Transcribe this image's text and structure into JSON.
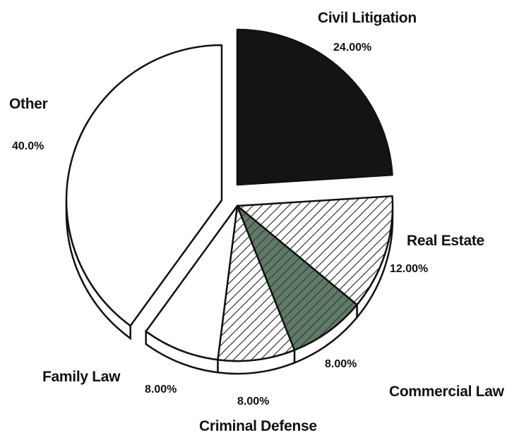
{
  "chart_data": {
    "type": "pie",
    "title": "",
    "style": "3d-exploded",
    "colors": {
      "outline": "#111111",
      "dark": "#141414",
      "hatch": "#222222",
      "green": "#5f7a66",
      "white": "#ffffff"
    },
    "slices": [
      {
        "key": "civil",
        "label": "Civil Litigation",
        "value": 24,
        "value_label": "24.00%",
        "fill": "dark"
      },
      {
        "key": "realestate",
        "label": "Real Estate",
        "value": 12,
        "value_label": "12.00%",
        "fill": "hatch"
      },
      {
        "key": "commercial",
        "label": "Commercial Law",
        "value": 8,
        "value_label": "8.00%",
        "fill": "green-hatch"
      },
      {
        "key": "criminal",
        "label": "Criminal Defense",
        "value": 8,
        "value_label": "8.00%",
        "fill": "hatch"
      },
      {
        "key": "family",
        "label": "Family Law",
        "value": 8,
        "value_label": "8.00%",
        "fill": "white"
      },
      {
        "key": "other",
        "label": "Other",
        "value": 40,
        "value_label": "40.0%",
        "fill": "white"
      }
    ]
  }
}
